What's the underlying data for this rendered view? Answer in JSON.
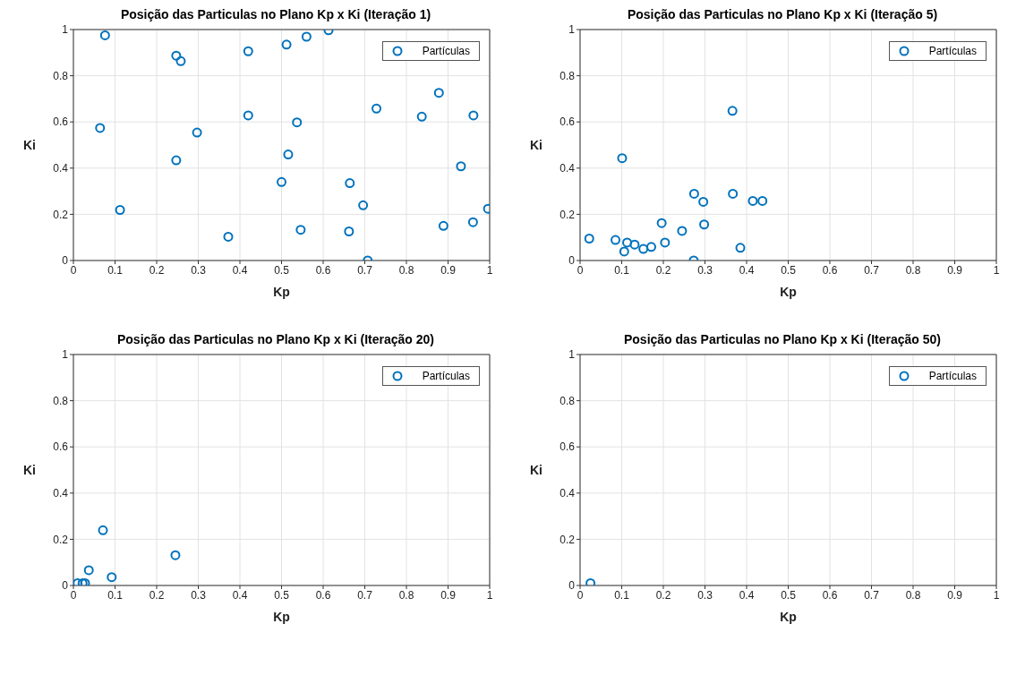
{
  "chart_data": [
    {
      "type": "scatter",
      "title": "Posição das Particulas no Plano Kp x Ki (Iteração 1)",
      "xlabel": "Kp",
      "ylabel": "Ki",
      "x": [
        0.076,
        0.247,
        0.258,
        0.42,
        0.512,
        0.56,
        0.613,
        0.064,
        0.297,
        0.42,
        0.537,
        0.728,
        0.837,
        0.878,
        0.961,
        0.247,
        0.516,
        0.5,
        0.664,
        0.931,
        0.112,
        0.696,
        0.996,
        0.372,
        0.546,
        0.662,
        0.889,
        0.96,
        0.707
      ],
      "series": [
        {
          "name": "Partículas",
          "color": "#0072bd",
          "values": [
            0.975,
            0.887,
            0.863,
            0.906,
            0.935,
            0.969,
            0.997,
            0.574,
            0.554,
            0.628,
            0.598,
            0.658,
            0.623,
            0.726,
            0.628,
            0.434,
            0.459,
            0.34,
            0.335,
            0.408,
            0.219,
            0.239,
            0.224,
            0.103,
            0.133,
            0.126,
            0.15,
            0.166,
            0.0
          ]
        }
      ],
      "xlim": [
        0,
        1
      ],
      "ylim": [
        0,
        1
      ],
      "xticks": [
        0,
        0.1,
        0.2,
        0.3,
        0.4,
        0.5,
        0.6,
        0.7,
        0.8,
        0.9,
        1
      ],
      "yticks": [
        0,
        0.2,
        0.4,
        0.6,
        0.8,
        1
      ],
      "grid": true,
      "legend": "top right",
      "marker": "circle"
    },
    {
      "type": "scatter",
      "title": "Posição das Particulas no Plano Kp x Ki (Iteração 5)",
      "xlabel": "Kp",
      "ylabel": "Ki",
      "x": [
        0.366,
        0.101,
        0.274,
        0.296,
        0.367,
        0.415,
        0.438,
        0.196,
        0.298,
        0.245,
        0.022,
        0.085,
        0.113,
        0.131,
        0.106,
        0.152,
        0.171,
        0.204,
        0.385,
        0.273
      ],
      "series": [
        {
          "name": "Partículas",
          "color": "#0072bd",
          "values": [
            0.648,
            0.443,
            0.289,
            0.254,
            0.289,
            0.258,
            0.258,
            0.162,
            0.156,
            0.128,
            0.095,
            0.089,
            0.078,
            0.069,
            0.039,
            0.05,
            0.059,
            0.078,
            0.055,
            0.0
          ]
        }
      ],
      "xlim": [
        0,
        1
      ],
      "ylim": [
        0,
        1
      ],
      "xticks": [
        0,
        0.1,
        0.2,
        0.3,
        0.4,
        0.5,
        0.6,
        0.7,
        0.8,
        0.9,
        1
      ],
      "yticks": [
        0,
        0.2,
        0.4,
        0.6,
        0.8,
        1
      ],
      "grid": true,
      "legend": "top right",
      "marker": "circle"
    },
    {
      "type": "scatter",
      "title": "Posição das Particulas no Plano Kp x Ki (Iteração 20)",
      "xlabel": "Kp",
      "ylabel": "Ki",
      "x": [
        0.071,
        0.245,
        0.037,
        0.092,
        0.01,
        0.022,
        0.028
      ],
      "series": [
        {
          "name": "Partículas",
          "color": "#0072bd",
          "values": [
            0.239,
            0.131,
            0.066,
            0.036,
            0.01,
            0.01,
            0.01
          ]
        }
      ],
      "xlim": [
        0,
        1
      ],
      "ylim": [
        0,
        1
      ],
      "xticks": [
        0,
        0.1,
        0.2,
        0.3,
        0.4,
        0.5,
        0.6,
        0.7,
        0.8,
        0.9,
        1
      ],
      "yticks": [
        0,
        0.2,
        0.4,
        0.6,
        0.8,
        1
      ],
      "grid": true,
      "legend": "top right",
      "marker": "circle"
    },
    {
      "type": "scatter",
      "title": "Posição das Particulas no Plano Kp x Ki (Iteração 50)",
      "xlabel": "Kp",
      "ylabel": "Ki",
      "x": [
        0.025
      ],
      "series": [
        {
          "name": "Partículas",
          "color": "#0072bd",
          "values": [
            0.01
          ]
        }
      ],
      "xlim": [
        0,
        1
      ],
      "ylim": [
        0,
        1
      ],
      "xticks": [
        0,
        0.1,
        0.2,
        0.3,
        0.4,
        0.5,
        0.6,
        0.7,
        0.8,
        0.9,
        1
      ],
      "yticks": [
        0,
        0.2,
        0.4,
        0.6,
        0.8,
        1
      ],
      "grid": true,
      "legend": "top right",
      "marker": "circle"
    }
  ]
}
